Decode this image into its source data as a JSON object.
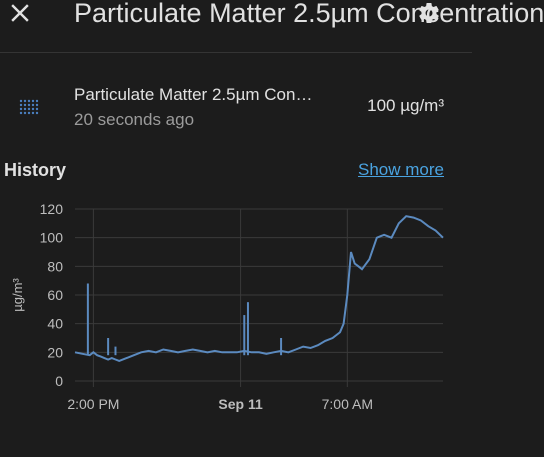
{
  "dialog": {
    "close_icon": "close-icon",
    "title": "Particulate Matter 2.5µm Concentration",
    "settings_icon": "gear-icon"
  },
  "entity": {
    "icon": "dots-grid-icon",
    "name": "Particulate Matter 2.5µm Con…",
    "last_changed": "20 seconds ago",
    "state": "100 µg/m³"
  },
  "history": {
    "title": "History",
    "show_more": "Show more"
  },
  "colors": {
    "background": "#1c1c1c",
    "line": "#5b8abf",
    "link": "#4aa3e0",
    "grid": "#3a3a3a"
  },
  "chart_data": {
    "type": "line",
    "ylabel": "µg/m³",
    "ylim": [
      0,
      120
    ],
    "yticks": [
      0,
      20,
      40,
      60,
      80,
      100,
      120
    ],
    "xticks": [
      {
        "label": "2:00 PM",
        "bold": false
      },
      {
        "label": "Sep 11",
        "bold": true
      },
      {
        "label": "7:00 AM",
        "bold": false
      }
    ],
    "grid": true,
    "series": [
      {
        "x": [
          0,
          0.02,
          0.04,
          0.05,
          0.06,
          0.07,
          0.08,
          0.09,
          0.1,
          0.11,
          0.12,
          0.14,
          0.16,
          0.18,
          0.2,
          0.22,
          0.24,
          0.26,
          0.28,
          0.3,
          0.32,
          0.34,
          0.36,
          0.38,
          0.4,
          0.42,
          0.44,
          0.46,
          0.48,
          0.5,
          0.52,
          0.54,
          0.56,
          0.58,
          0.6,
          0.62,
          0.64,
          0.66,
          0.68,
          0.7,
          0.71,
          0.72,
          0.73,
          0.74,
          0.75,
          0.76,
          0.77,
          0.78,
          0.8,
          0.82,
          0.84,
          0.86,
          0.88,
          0.9,
          0.92,
          0.94,
          0.96,
          0.98,
          1.0
        ],
        "values": [
          20,
          19,
          18,
          20,
          18,
          17,
          16,
          15,
          16,
          15,
          14,
          16,
          18,
          20,
          21,
          20,
          22,
          21,
          20,
          21,
          22,
          21,
          20,
          21,
          20,
          20,
          20,
          21,
          20,
          20,
          19,
          20,
          21,
          20,
          22,
          24,
          23,
          25,
          28,
          30,
          32,
          34,
          40,
          60,
          90,
          82,
          80,
          78,
          85,
          100,
          102,
          100,
          110,
          115,
          114,
          112,
          108,
          105,
          100
        ]
      }
    ],
    "spikes": [
      {
        "x": 0.035,
        "y": 68
      },
      {
        "x": 0.09,
        "y": 30
      },
      {
        "x": 0.11,
        "y": 24
      },
      {
        "x": 0.46,
        "y": 46
      },
      {
        "x": 0.47,
        "y": 55
      },
      {
        "x": 0.56,
        "y": 30
      }
    ]
  }
}
